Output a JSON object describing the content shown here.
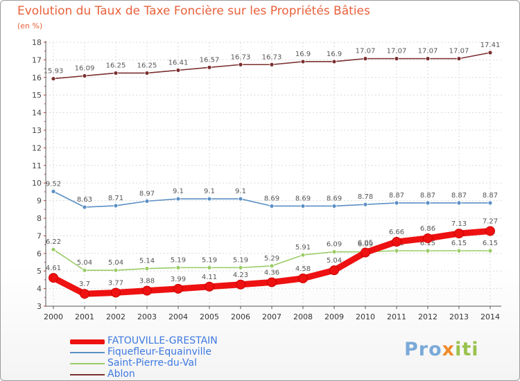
{
  "title": "Evolution du Taux de Taxe Foncière sur les Propriétés Bâties",
  "subtitle": "(en %)",
  "logo": {
    "part1": "Pro",
    "part2": "x",
    "part3": "iti"
  },
  "chart_data": {
    "type": "line",
    "title": "Evolution du Taux de Taxe Foncière sur les Propriétés Bâties",
    "ylabel": "(en %)",
    "xlabel": "",
    "ylim": [
      3,
      18
    ],
    "yticks": [
      3,
      4,
      5,
      6,
      7,
      8,
      9,
      10,
      11,
      12,
      13,
      14,
      15,
      16,
      17,
      18
    ],
    "grid": true,
    "legend": "bottom-left",
    "x": [
      "2000",
      "2001",
      "2002",
      "2003",
      "2004",
      "2005",
      "2006",
      "2007",
      "2008",
      "2009",
      "2010",
      "2011",
      "2012",
      "2013",
      "2014"
    ],
    "series": [
      {
        "name": "Ablon",
        "color": "#7b2e2e",
        "values": [
          15.93,
          16.09,
          16.25,
          16.25,
          16.41,
          16.57,
          16.73,
          16.73,
          16.9,
          16.9,
          17.07,
          17.07,
          17.07,
          17.07,
          17.41
        ],
        "labels": [
          "15.93",
          "16.09",
          "16.25",
          "16.25",
          "16.41",
          "16.57",
          "16.73",
          "16.73",
          "16.9",
          "16.9",
          "17.07",
          "17.07",
          "17.07",
          "17.07",
          "17.41"
        ]
      },
      {
        "name": "Fiquefleur-Equainville",
        "color": "#5b8fc4",
        "values": [
          9.52,
          8.63,
          8.71,
          8.97,
          9.1,
          9.1,
          9.1,
          8.69,
          8.69,
          8.69,
          8.78,
          8.87,
          8.87,
          8.87,
          8.87
        ],
        "labels": [
          "9.52",
          "8.63",
          "8.71",
          "8.97",
          "9.1",
          "9.1",
          "9.1",
          "8.69",
          "8.69",
          "8.69",
          "8.78",
          "8.87",
          "8.87",
          "8.87",
          "8.87"
        ]
      },
      {
        "name": "Saint-Pierre-du-Val",
        "color": "#99cc66",
        "values": [
          6.22,
          5.04,
          5.04,
          5.14,
          5.19,
          5.19,
          5.19,
          5.29,
          5.91,
          6.09,
          6.09,
          6.15,
          6.15,
          6.15,
          6.15
        ],
        "labels": [
          "6.22",
          "5.04",
          "5.04",
          "5.14",
          "5.19",
          "5.19",
          "5.19",
          "5.29",
          "5.91",
          "6.09",
          "6.09",
          "6.15",
          "6.15",
          "6.15",
          "6.15"
        ]
      },
      {
        "name": "FATOUVILLE-GRESTAIN",
        "color": "#ee1111",
        "values": [
          4.61,
          3.7,
          3.77,
          3.88,
          3.99,
          4.11,
          4.23,
          4.36,
          4.58,
          5.04,
          6.05,
          6.66,
          6.86,
          7.13,
          7.27
        ],
        "labels": [
          "4.61",
          "3.7",
          "3.77",
          "3.88",
          "3.99",
          "4.11",
          "4.23",
          "4.36",
          "4.58",
          "5.04",
          "6.05",
          "6.66",
          "6.86",
          "7.13",
          "7.27"
        ]
      }
    ]
  },
  "legend": {
    "items": [
      {
        "label": "FATOUVILLE-GRESTAIN",
        "color": "#ee1111"
      },
      {
        "label": "Fiquefleur-Equainville",
        "color": "#5b8fc4"
      },
      {
        "label": "Saint-Pierre-du-Val",
        "color": "#99cc66"
      },
      {
        "label": "Ablon",
        "color": "#7b2e2e"
      }
    ]
  }
}
